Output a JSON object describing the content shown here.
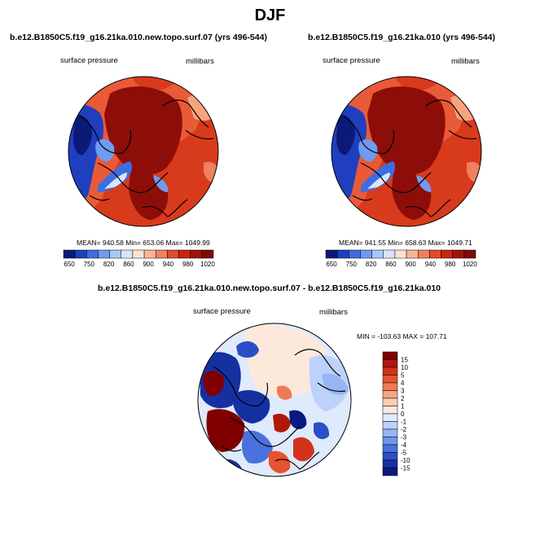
{
  "figure": {
    "title": "DJF"
  },
  "panels": [
    {
      "title": "b.e12.B1850C5.f19_g16.21ka.010.new.topo.surf.07 (yrs 496-544)",
      "left_label": "surface pressure",
      "right_label": "millibars",
      "stats": "MEAN= 940.58  Min= 653.06  Max= 1049.99"
    },
    {
      "title": "b.e12.B1850C5.f19_g16.21ka.010 (yrs 496-544)",
      "left_label": "surface pressure",
      "right_label": "millibars",
      "stats": "MEAN= 941.55  Min= 658.63  Max= 1049.71"
    },
    {
      "title": "b.e12.B1850C5.f19_g16.21ka.010.new.topo.surf.07 - b.e12.B1850C5.f19_g16.21ka.010",
      "left_label": "surface pressure",
      "right_label": "millibars",
      "stats": "MIN = -103.63 MAX = 107.71"
    }
  ],
  "chart_data": [
    {
      "type": "heatmap",
      "projection": "north-polar-stereographic",
      "title": "b.e12.B1850C5.f19_g16.21ka.010.new.topo.surf.07 (yrs 496-544)",
      "variable": "surface pressure",
      "units": "millibars",
      "stats": {
        "mean": 940.58,
        "min": 653.06,
        "max": 1049.99
      },
      "colorbar": {
        "orientation": "horizontal",
        "tick_labels": [
          "650",
          "750",
          "820",
          "860",
          "900",
          "940",
          "980",
          "1020"
        ],
        "colors": [
          "#0b1a78",
          "#1f3fbf",
          "#3d6ee0",
          "#6f9bf0",
          "#a9c6f7",
          "#d7e6fb",
          "#fbe3d3",
          "#f7b596",
          "#f08060",
          "#e34a2a",
          "#c8260f",
          "#a0140a",
          "#7d0a06"
        ]
      }
    },
    {
      "type": "heatmap",
      "projection": "north-polar-stereographic",
      "title": "b.e12.B1850C5.f19_g16.21ka.010 (yrs 496-544)",
      "variable": "surface pressure",
      "units": "millibars",
      "stats": {
        "mean": 941.55,
        "min": 658.63,
        "max": 1049.71
      },
      "colorbar": {
        "orientation": "horizontal",
        "tick_labels": [
          "650",
          "750",
          "820",
          "860",
          "900",
          "940",
          "980",
          "1020"
        ],
        "colors": [
          "#0b1a78",
          "#1f3fbf",
          "#3d6ee0",
          "#6f9bf0",
          "#a9c6f7",
          "#d7e6fb",
          "#fbe3d3",
          "#f7b596",
          "#f08060",
          "#e34a2a",
          "#c8260f",
          "#a0140a",
          "#7d0a06"
        ]
      }
    },
    {
      "type": "heatmap",
      "projection": "north-polar-stereographic",
      "title": "b.e12.B1850C5.f19_g16.21ka.010.new.topo.surf.07 - b.e12.B1850C5.f19_g16.21ka.010",
      "variable": "surface pressure",
      "units": "millibars",
      "stats": {
        "min": -103.63,
        "max": 107.71
      },
      "colorbar": {
        "orientation": "vertical",
        "tick_labels": [
          "15",
          "10",
          "5",
          "4",
          "3",
          "2",
          "1",
          "0",
          "-1",
          "-2",
          "-3",
          "-4",
          "-5",
          "-10",
          "-15"
        ],
        "colors": [
          "#800000",
          "#b01808",
          "#d2321a",
          "#e8522f",
          "#f07a55",
          "#f6a480",
          "#fbcdb4",
          "#fde8dc",
          "#dfeafd",
          "#bcd2fa",
          "#96b5f3",
          "#7096ea",
          "#4a72dc",
          "#2a4ec5",
          "#1530a0",
          "#0a1a80"
        ]
      }
    }
  ]
}
